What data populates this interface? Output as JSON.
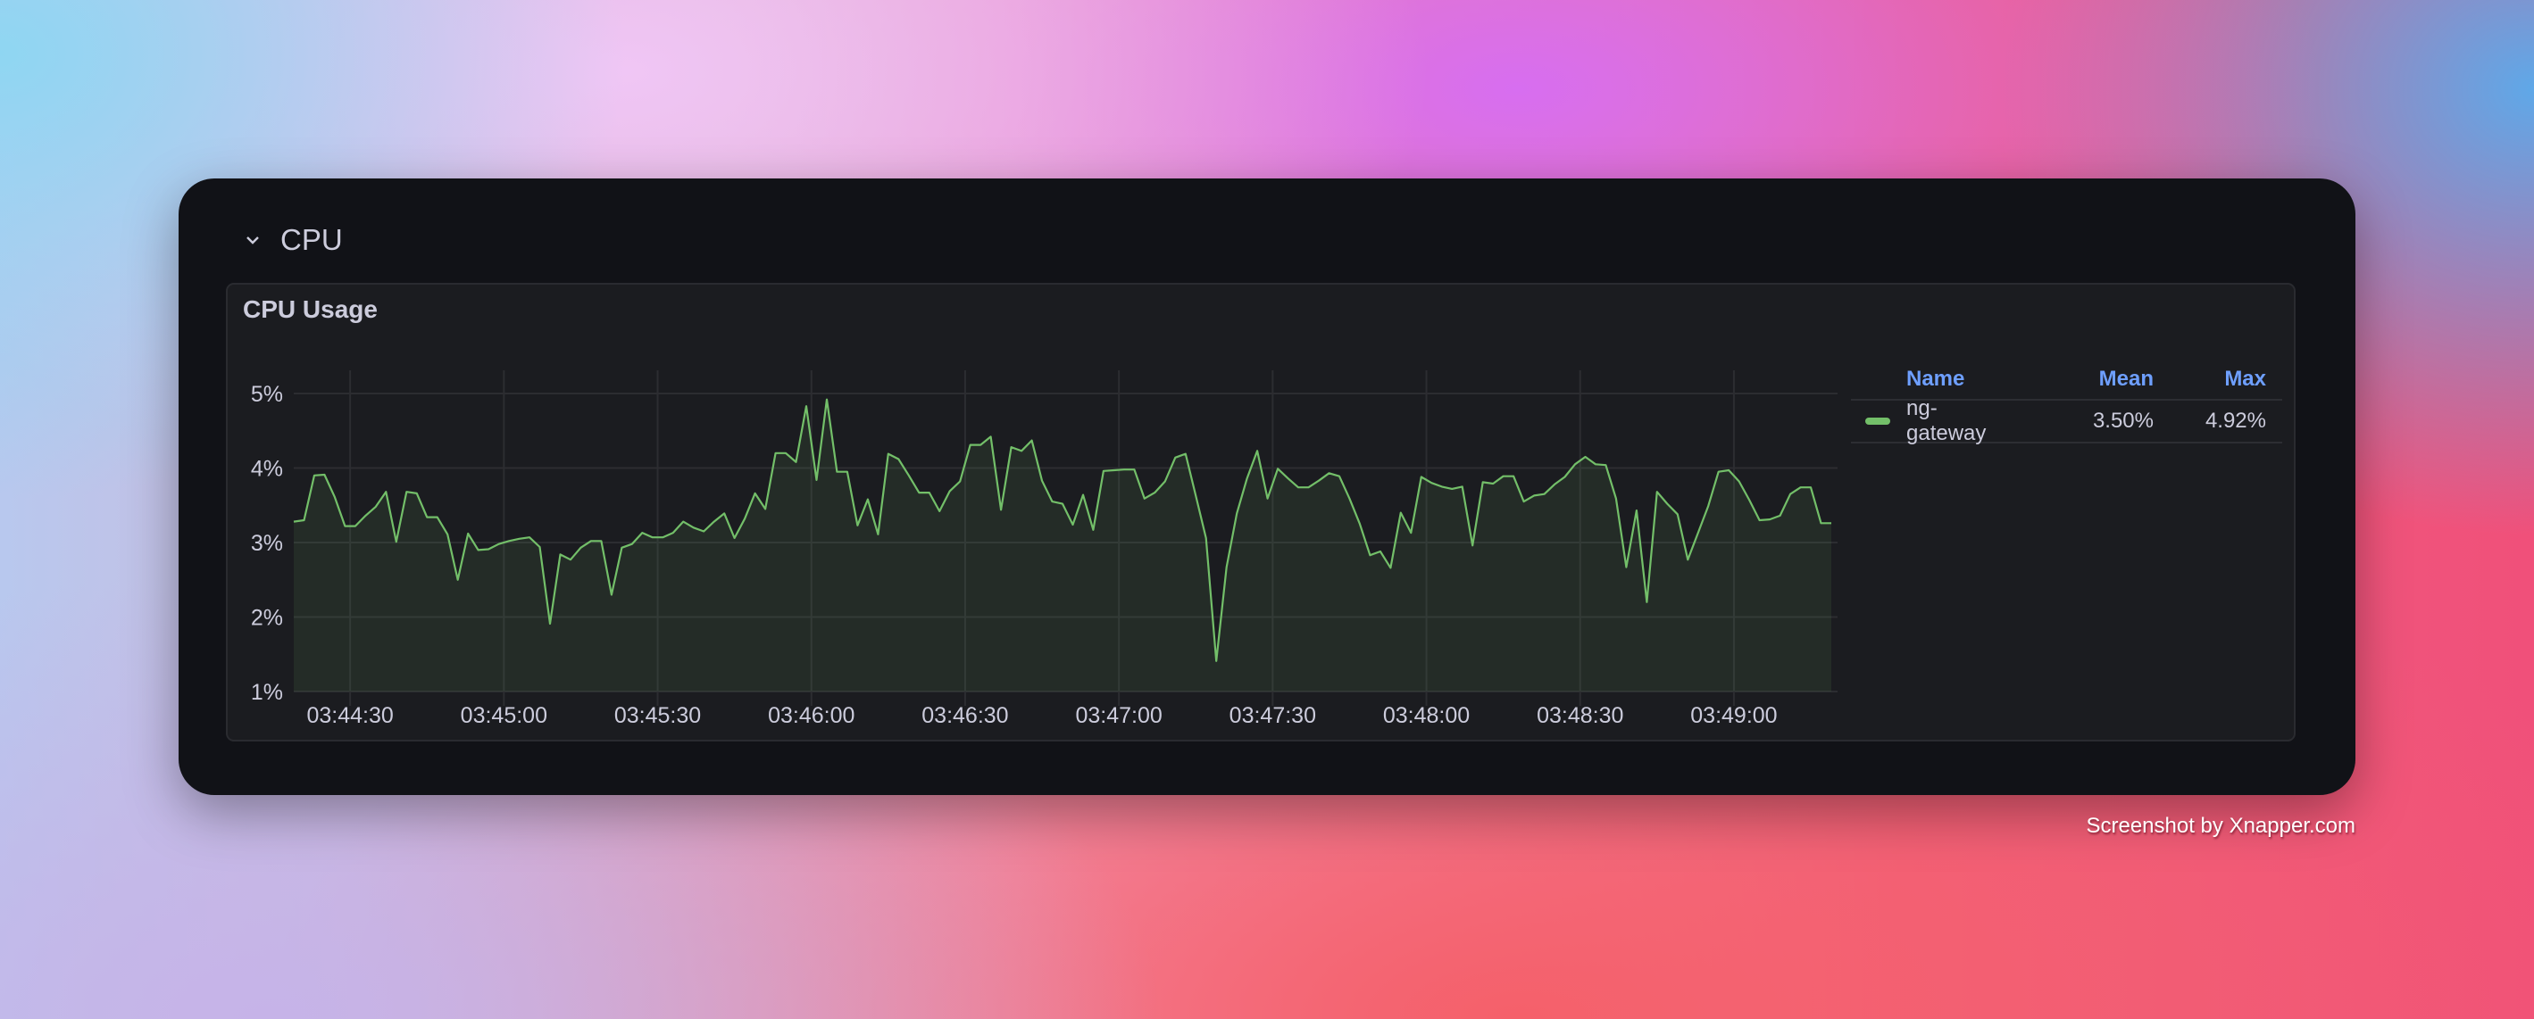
{
  "row": {
    "title": "CPU",
    "collapse_icon": "chevron-down-icon"
  },
  "panel": {
    "title": "CPU Usage"
  },
  "legend": {
    "headers": {
      "name": "Name",
      "mean": "Mean",
      "max": "Max"
    },
    "rows": [
      {
        "name": "ng-gateway",
        "mean": "3.50%",
        "max": "4.92%",
        "color": "#73bf69"
      }
    ]
  },
  "watermark": "Screenshot by Xnapper.com",
  "chart_data": {
    "type": "area",
    "title": "CPU Usage",
    "xlabel": "",
    "ylabel": "",
    "ylim": [
      1,
      5
    ],
    "y_ticks": [
      "1%",
      "2%",
      "3%",
      "4%",
      "5%"
    ],
    "x_ticks": [
      "03:44:30",
      "03:45:00",
      "03:45:30",
      "03:46:00",
      "03:46:30",
      "03:47:00",
      "03:47:30",
      "03:48:00",
      "03:48:30",
      "03:49:00"
    ],
    "xlim": [
      "03:44:19",
      "03:49:19"
    ],
    "grid": true,
    "legend": "right",
    "series": [
      {
        "name": "ng-gateway",
        "color": "#73bf69",
        "unit": "%",
        "x": [
          "03:44:19",
          "03:44:21",
          "03:44:23",
          "03:44:25",
          "03:44:27",
          "03:44:29",
          "03:44:31",
          "03:44:33",
          "03:44:35",
          "03:44:37",
          "03:44:39",
          "03:44:41",
          "03:44:43",
          "03:44:45",
          "03:44:47",
          "03:44:49",
          "03:44:51",
          "03:44:53",
          "03:44:55",
          "03:44:57",
          "03:44:59",
          "03:45:01",
          "03:45:03",
          "03:45:05",
          "03:45:07",
          "03:45:09",
          "03:45:11",
          "03:45:13",
          "03:45:15",
          "03:45:17",
          "03:45:19",
          "03:45:21",
          "03:45:23",
          "03:45:25",
          "03:45:27",
          "03:45:29",
          "03:45:31",
          "03:45:33",
          "03:45:35",
          "03:45:37",
          "03:45:39",
          "03:45:41",
          "03:45:43",
          "03:45:45",
          "03:45:47",
          "03:45:49",
          "03:45:51",
          "03:45:53",
          "03:45:55",
          "03:45:57",
          "03:45:59",
          "03:46:01",
          "03:46:03",
          "03:46:05",
          "03:46:07",
          "03:46:09",
          "03:46:11",
          "03:46:13",
          "03:46:15",
          "03:46:17",
          "03:46:19",
          "03:46:21",
          "03:46:23",
          "03:46:25",
          "03:46:27",
          "03:46:29",
          "03:46:31",
          "03:46:33",
          "03:46:35",
          "03:46:37",
          "03:46:39",
          "03:46:41",
          "03:46:43",
          "03:46:45",
          "03:46:47",
          "03:46:49",
          "03:46:51",
          "03:46:53",
          "03:46:55",
          "03:46:57",
          "03:46:59",
          "03:47:01",
          "03:47:03",
          "03:47:05",
          "03:47:07",
          "03:47:09",
          "03:47:11",
          "03:47:13",
          "03:47:15",
          "03:47:17",
          "03:47:19",
          "03:47:21",
          "03:47:23",
          "03:47:25",
          "03:47:27",
          "03:47:29",
          "03:47:31",
          "03:47:33",
          "03:47:35",
          "03:47:37",
          "03:47:39",
          "03:47:41",
          "03:47:43",
          "03:47:45",
          "03:47:47",
          "03:47:49",
          "03:47:51",
          "03:47:53",
          "03:47:55",
          "03:47:57",
          "03:47:59",
          "03:48:01",
          "03:48:03",
          "03:48:05",
          "03:48:07",
          "03:48:09",
          "03:48:11",
          "03:48:13",
          "03:48:15",
          "03:48:17",
          "03:48:19",
          "03:48:21",
          "03:48:23",
          "03:48:25",
          "03:48:27",
          "03:48:29",
          "03:48:31",
          "03:48:33",
          "03:48:35",
          "03:48:37",
          "03:48:39",
          "03:48:41",
          "03:48:43",
          "03:48:45",
          "03:48:47",
          "03:48:49",
          "03:48:51",
          "03:48:53",
          "03:48:55",
          "03:48:57",
          "03:48:59",
          "03:49:01",
          "03:49:03",
          "03:49:05",
          "03:49:07",
          "03:49:09",
          "03:49:11",
          "03:49:13",
          "03:49:15",
          "03:49:17",
          "03:49:19"
        ],
        "values": [
          3.28,
          3.3,
          3.9,
          3.91,
          3.61,
          3.22,
          3.22,
          3.36,
          3.48,
          3.68,
          3.01,
          3.68,
          3.66,
          3.34,
          3.34,
          3.11,
          2.5,
          3.12,
          2.9,
          2.91,
          2.98,
          3.02,
          3.05,
          3.07,
          2.94,
          1.91,
          2.84,
          2.77,
          2.93,
          3.02,
          3.02,
          2.3,
          2.93,
          2.98,
          3.13,
          3.07,
          3.07,
          3.13,
          3.28,
          3.2,
          3.15,
          3.28,
          3.39,
          3.06,
          3.32,
          3.66,
          3.45,
          4.2,
          4.2,
          4.08,
          4.83,
          3.84,
          4.92,
          3.95,
          3.95,
          3.23,
          3.58,
          3.11,
          4.19,
          4.12,
          3.9,
          3.67,
          3.67,
          3.42,
          3.69,
          3.82,
          4.31,
          4.31,
          4.42,
          3.44,
          4.28,
          4.23,
          4.37,
          3.83,
          3.55,
          3.52,
          3.24,
          3.64,
          3.17,
          3.96,
          3.97,
          3.98,
          3.98,
          3.59,
          3.67,
          3.82,
          4.14,
          4.19,
          3.63,
          3.06,
          1.41,
          2.67,
          3.39,
          3.86,
          4.23,
          3.59,
          3.99,
          3.86,
          3.74,
          3.74,
          3.83,
          3.93,
          3.89,
          3.59,
          3.25,
          2.83,
          2.88,
          2.66,
          3.4,
          3.13,
          3.88,
          3.8,
          3.75,
          3.72,
          3.75,
          2.96,
          3.81,
          3.79,
          3.89,
          3.89,
          3.55,
          3.63,
          3.65,
          3.78,
          3.88,
          4.05,
          4.15,
          4.05,
          4.04,
          3.59,
          2.67,
          3.43,
          2.2,
          3.68,
          3.52,
          3.38,
          2.77,
          3.13,
          3.49,
          3.95,
          3.97,
          3.82,
          3.57,
          3.3,
          3.31,
          3.36,
          3.65,
          3.74,
          3.74,
          3.26,
          3.26
        ]
      }
    ]
  }
}
